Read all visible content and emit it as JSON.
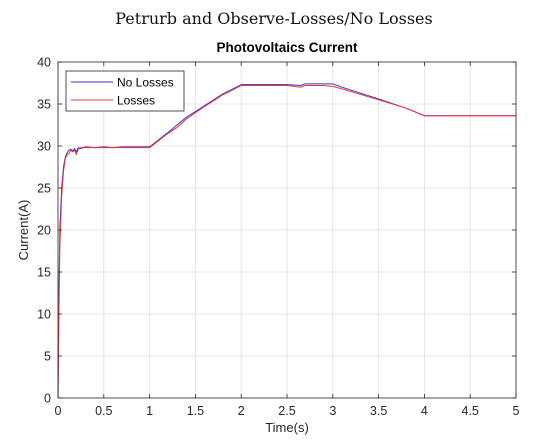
{
  "figure_title": "Petrurb and Observe-Losses/No Losses",
  "chart_data": {
    "type": "line",
    "title": "Photovoltaics Current",
    "xlabel": "Time(s)",
    "ylabel": "Current(A)",
    "xlim": [
      0,
      5
    ],
    "ylim": [
      0,
      40
    ],
    "xticks": [
      "0",
      "0.5",
      "1",
      "1.5",
      "2",
      "2.5",
      "3",
      "3.5",
      "4",
      "4.5",
      "5"
    ],
    "yticks": [
      "0",
      "5",
      "10",
      "15",
      "20",
      "25",
      "30",
      "35",
      "40"
    ],
    "grid": true,
    "legend_position": "top-left",
    "series": [
      {
        "name": "No Losses",
        "color": "#3333cc",
        "x": [
          0,
          0.01,
          0.02,
          0.04,
          0.06,
          0.08,
          0.1,
          0.12,
          0.14,
          0.16,
          0.18,
          0.2,
          0.22,
          0.25,
          0.3,
          0.4,
          0.5,
          0.6,
          0.7,
          0.8,
          0.9,
          1.0,
          1.2,
          1.4,
          1.6,
          1.8,
          2.0,
          2.2,
          2.5,
          2.65,
          2.7,
          2.9,
          3.0,
          3.1,
          3.5,
          3.8,
          4.0,
          4.2,
          4.5,
          5.0
        ],
        "y": [
          0,
          12,
          20,
          25,
          27.5,
          28.7,
          29.2,
          29.5,
          29.6,
          29.4,
          29.7,
          29.3,
          29.8,
          29.7,
          29.9,
          29.8,
          29.9,
          29.8,
          29.9,
          29.9,
          29.9,
          29.9,
          31.6,
          33.4,
          34.8,
          36.2,
          37.3,
          37.3,
          37.3,
          37.2,
          37.4,
          37.4,
          37.4,
          37.0,
          35.6,
          34.5,
          33.6,
          33.6,
          33.6,
          33.6
        ]
      },
      {
        "name": "Losses",
        "color": "#ee3333",
        "x": [
          0,
          0.01,
          0.02,
          0.04,
          0.06,
          0.08,
          0.1,
          0.12,
          0.14,
          0.16,
          0.18,
          0.2,
          0.22,
          0.25,
          0.3,
          0.4,
          0.5,
          0.6,
          0.7,
          0.8,
          0.9,
          1.0,
          1.2,
          1.3,
          1.4,
          1.6,
          1.8,
          2.0,
          2.2,
          2.5,
          2.65,
          2.7,
          2.9,
          3.0,
          3.1,
          3.5,
          3.8,
          4.0,
          4.2,
          4.5,
          5.0
        ],
        "y": [
          0,
          10,
          18,
          24,
          27,
          28.5,
          29.0,
          29.1,
          29.5,
          29.3,
          29.5,
          29.0,
          29.6,
          29.8,
          29.8,
          29.8,
          29.8,
          29.8,
          29.8,
          29.8,
          29.8,
          29.8,
          31.5,
          32.2,
          33.2,
          34.7,
          36.1,
          37.2,
          37.2,
          37.2,
          37.0,
          37.2,
          37.2,
          37.1,
          36.8,
          35.5,
          34.5,
          33.6,
          33.6,
          33.6,
          33.6
        ]
      }
    ]
  }
}
